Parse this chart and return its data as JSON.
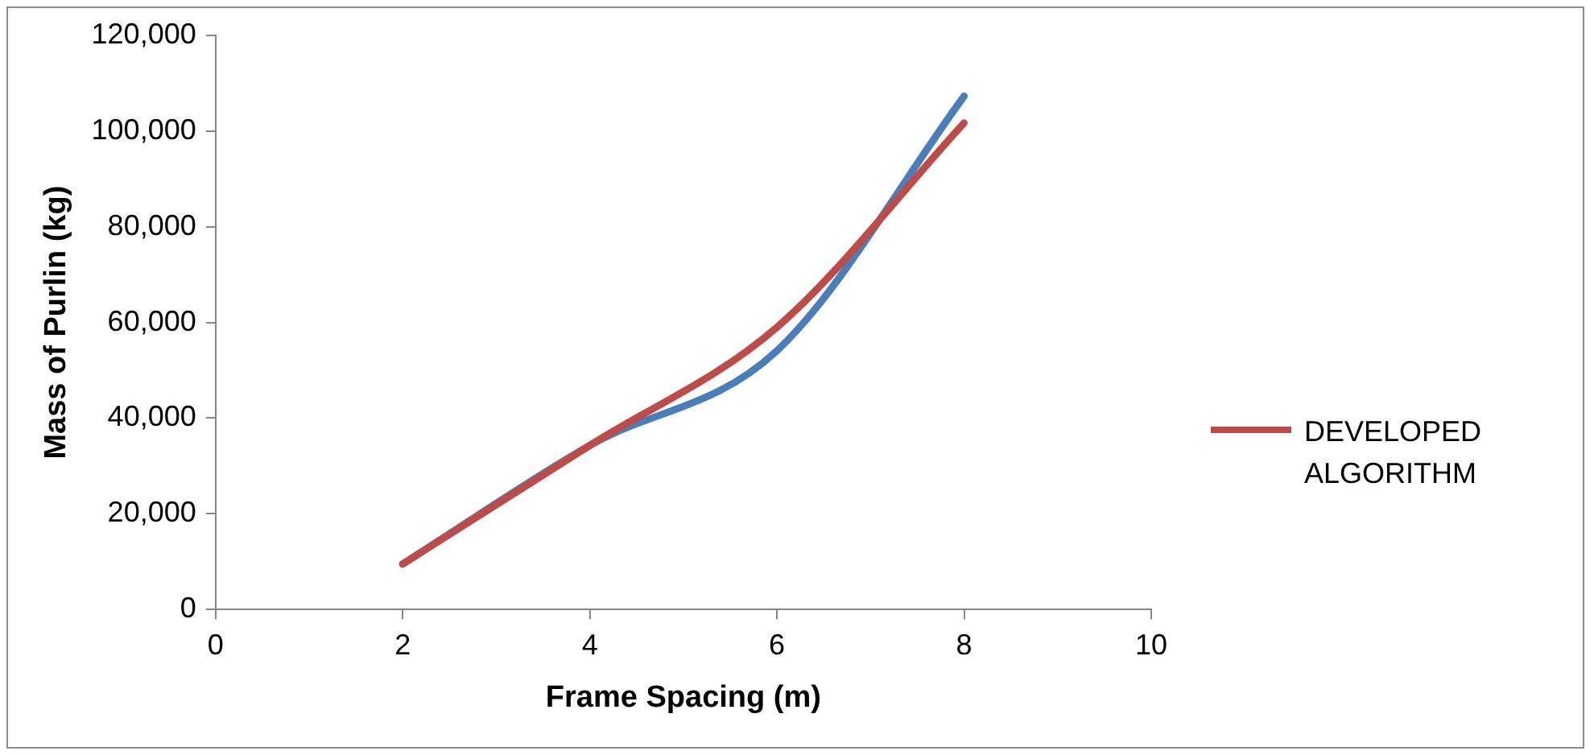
{
  "chart_data": {
    "type": "line",
    "xlabel": "Frame Spacing (m)",
    "ylabel": "Mass of Purlin (kg)",
    "x": [
      2,
      4,
      6,
      8
    ],
    "series": [
      {
        "color": "#4a7ebb",
        "values": [
          9500,
          34300,
          54100,
          107300
        ]
      },
      {
        "name": "DEVELOPED ALGORITHM",
        "color": "#be4b48",
        "values": [
          9500,
          34300,
          59000,
          101700
        ]
      }
    ],
    "xlim": [
      0,
      10
    ],
    "xticks": [
      0,
      2,
      4,
      6,
      8,
      10
    ],
    "ylim": [
      0,
      120000
    ],
    "yticks": [
      0,
      {
        "value": 20000,
        "label": "20,000"
      },
      {
        "value": 40000,
        "label": "40,000"
      },
      {
        "value": 60000,
        "label": "60,000"
      },
      {
        "value": 80000,
        "label": "80,000"
      },
      {
        "value": 100000,
        "label": "100,000"
      },
      {
        "value": 120000,
        "label": "120,000"
      }
    ],
    "grid": false,
    "legend": "right",
    "marker": "none",
    "line_style": "solid"
  }
}
